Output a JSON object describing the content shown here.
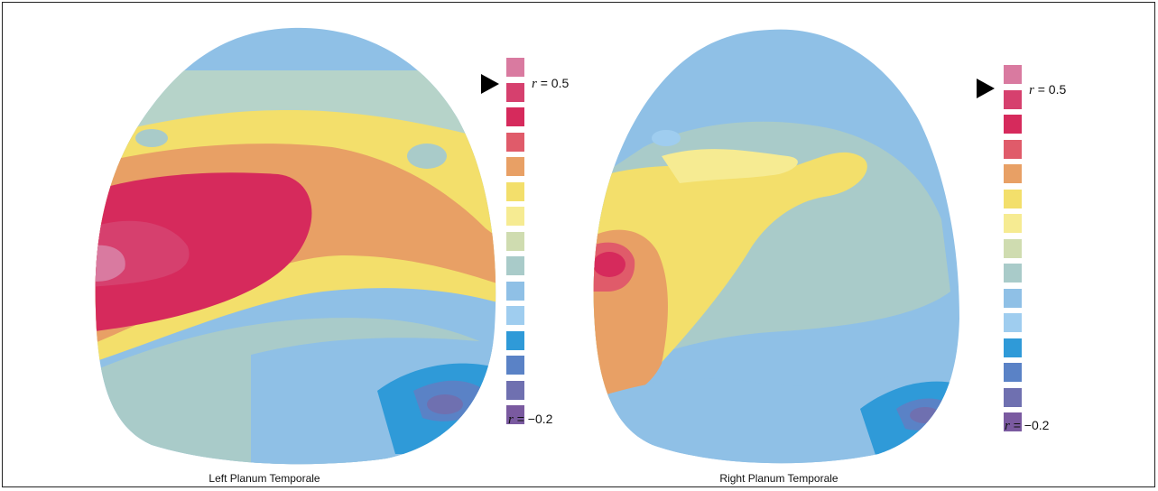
{
  "panels": [
    {
      "caption": "Left Planum Temporale",
      "top_label": {
        "var": "r",
        "rest": " = 0.5"
      },
      "bottom_label": {
        "var": "r",
        "rest": " = −0.2"
      }
    },
    {
      "caption": "Right Planum Temporale",
      "top_label": {
        "var": "r",
        "rest": " = 0.5"
      },
      "bottom_label": {
        "var": "r",
        "rest": " = −0.2"
      }
    }
  ],
  "colors": {
    "scale": [
      "#d97aa0",
      "#d6406e",
      "#d62a5c",
      "#e05b6a",
      "#e8a065",
      "#f3df6b",
      "#f6eb92",
      "#cfdcb0",
      "#a9cbc9",
      "#8fc0e6",
      "#9fcdef",
      "#2f9ad8",
      "#5a82c6",
      "#6f70b0",
      "#7a5aa0"
    ]
  }
}
